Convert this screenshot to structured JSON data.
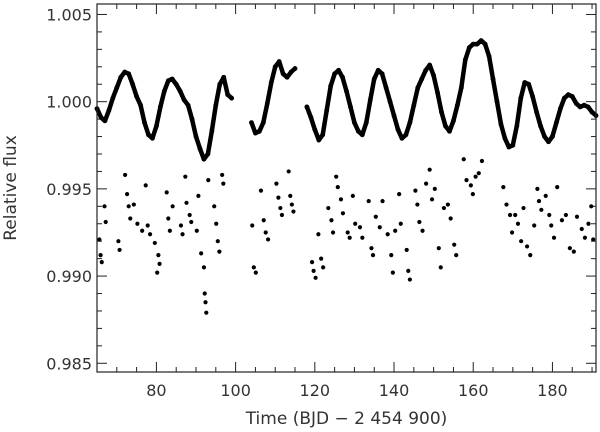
{
  "chart_data": {
    "type": "scatter",
    "title": "",
    "xlabel": "Time (BJD − 2 454 900)",
    "ylabel": "Relative flux",
    "xlim": [
      65,
      191
    ],
    "ylim": [
      0.9845,
      1.0056
    ],
    "grid": false,
    "marker_color": "#000000",
    "x_ticks": [
      {
        "value": 80,
        "label": "80"
      },
      {
        "value": 100,
        "label": "100"
      },
      {
        "value": 120,
        "label": "120"
      },
      {
        "value": 140,
        "label": "140"
      },
      {
        "value": 160,
        "label": "160"
      },
      {
        "value": 180,
        "label": "180"
      }
    ],
    "y_ticks": [
      {
        "value": 0.985,
        "label": "0.985"
      },
      {
        "value": 0.99,
        "label": "0.990"
      },
      {
        "value": 0.995,
        "label": "0.995"
      },
      {
        "value": 1.0,
        "label": "1.000"
      },
      {
        "value": 1.005,
        "label": "1.005"
      }
    ],
    "x_minor_step": 5,
    "y_minor_step": 0.001,
    "series": [
      {
        "role": "light-curve",
        "points": [
          [
            65,
            0.9996
          ],
          [
            66,
            0.9991
          ],
          [
            67,
            0.9989
          ],
          [
            68,
            0.9995
          ],
          [
            69,
            1.0002
          ],
          [
            70,
            1.0008
          ],
          [
            71,
            1.0014
          ],
          [
            72,
            1.0017
          ],
          [
            73,
            1.0016
          ],
          [
            74,
            1.001
          ],
          [
            75,
            1.0003
          ],
          [
            76,
            0.9998
          ],
          [
            77,
            0.9988
          ],
          [
            78,
            0.9981
          ],
          [
            79,
            0.9979
          ],
          [
            80,
            0.9986
          ],
          [
            81,
            0.9997
          ],
          [
            82,
            1.0006
          ],
          [
            83,
            1.0012
          ],
          [
            84,
            1.0013
          ],
          [
            85,
            1.001
          ],
          [
            86,
            1.0006
          ],
          [
            87,
            1.0001
          ],
          [
            88,
            0.9998
          ],
          [
            89,
            0.999
          ],
          [
            90,
            0.998
          ],
          [
            91,
            0.9973
          ],
          [
            92,
            0.9967
          ],
          [
            93,
            0.997
          ],
          [
            94,
            0.9983
          ],
          [
            95,
            0.9998
          ],
          [
            96,
            1.001
          ],
          [
            97,
            1.0014
          ],
          [
            98,
            1.0004
          ],
          [
            99,
            1.0002
          ],
          [
            104,
            0.9988
          ],
          [
            105,
            0.9982
          ],
          [
            106,
            0.9983
          ],
          [
            107,
            0.9988
          ],
          [
            108,
            0.9999
          ],
          [
            109,
            1.0011
          ],
          [
            110,
            1.002
          ],
          [
            111,
            1.0023
          ],
          [
            112,
            1.0016
          ],
          [
            113,
            1.0014
          ],
          [
            114,
            1.0017
          ],
          [
            115,
            1.0019
          ],
          [
            118,
            0.9997
          ],
          [
            119,
            0.9991
          ],
          [
            120,
            0.9984
          ],
          [
            121,
            0.9978
          ],
          [
            122,
            0.9981
          ],
          [
            123,
            0.9995
          ],
          [
            124,
            1.0009
          ],
          [
            125,
            1.0016
          ],
          [
            126,
            1.0018
          ],
          [
            127,
            1.0014
          ],
          [
            128,
            1.0006
          ],
          [
            129,
            0.9997
          ],
          [
            130,
            0.9988
          ],
          [
            131,
            0.9983
          ],
          [
            132,
            0.9981
          ],
          [
            133,
            0.9988
          ],
          [
            134,
            1.0001
          ],
          [
            135,
            1.0013
          ],
          [
            136,
            1.0018
          ],
          [
            137,
            1.0016
          ],
          [
            138,
            1.0008
          ],
          [
            139,
            1.0
          ],
          [
            140,
            0.9992
          ],
          [
            141,
            0.9984
          ],
          [
            142,
            0.9979
          ],
          [
            143,
            0.9981
          ],
          [
            144,
            0.9988
          ],
          [
            145,
            0.9998
          ],
          [
            146,
            1.0008
          ],
          [
            147,
            1.0013
          ],
          [
            148,
            1.0018
          ],
          [
            149,
            1.0021
          ],
          [
            150,
            1.0015
          ],
          [
            151,
            1.0005
          ],
          [
            152,
            0.9994
          ],
          [
            153,
            0.9986
          ],
          [
            154,
            0.9983
          ],
          [
            155,
            0.9989
          ],
          [
            156,
            0.9998
          ],
          [
            157,
            1.0008
          ],
          [
            158,
            1.0024
          ],
          [
            159,
            1.0031
          ],
          [
            160,
            1.0033
          ],
          [
            161,
            1.0033
          ],
          [
            162,
            1.0035
          ],
          [
            163,
            1.0033
          ],
          [
            164,
            1.0026
          ],
          [
            165,
            1.0013
          ],
          [
            166,
            1.0
          ],
          [
            167,
            0.9987
          ],
          [
            168,
            0.9979
          ],
          [
            169,
            0.9974
          ],
          [
            170,
            0.9975
          ],
          [
            171,
            0.9986
          ],
          [
            172,
            1.0002
          ],
          [
            173,
            1.0011
          ],
          [
            174,
            1.001
          ],
          [
            175,
            1.0003
          ],
          [
            176,
            0.9994
          ],
          [
            177,
            0.9986
          ],
          [
            178,
            0.998
          ],
          [
            179,
            0.9977
          ],
          [
            180,
            0.998
          ],
          [
            181,
            0.9988
          ],
          [
            182,
            0.9996
          ],
          [
            183,
            1.0002
          ],
          [
            184,
            1.0004
          ],
          [
            185,
            1.0003
          ],
          [
            186,
            0.9999
          ],
          [
            187,
            0.9997
          ],
          [
            188,
            0.9998
          ],
          [
            189,
            0.9997
          ],
          [
            190,
            0.9994
          ],
          [
            191,
            0.9992
          ]
        ]
      },
      {
        "role": "outliers",
        "points": [
          [
            65.6,
            0.9921
          ],
          [
            65.9,
            0.9912
          ],
          [
            66.2,
            0.9908
          ],
          [
            66.9,
            0.994
          ],
          [
            67.2,
            0.9931
          ],
          [
            70.4,
            0.992
          ],
          [
            70.7,
            0.9915
          ],
          [
            72.1,
            0.9958
          ],
          [
            72.6,
            0.9947
          ],
          [
            73.0,
            0.994
          ],
          [
            73.4,
            0.9933
          ],
          [
            74.3,
            0.9941
          ],
          [
            75.2,
            0.993
          ],
          [
            76.4,
            0.9926
          ],
          [
            77.3,
            0.9952
          ],
          [
            77.8,
            0.9929
          ],
          [
            78.4,
            0.9924
          ],
          [
            79.6,
            0.9919
          ],
          [
            80.2,
            0.9902
          ],
          [
            80.5,
            0.9912
          ],
          [
            80.8,
            0.9907
          ],
          [
            82.6,
            0.9948
          ],
          [
            83.0,
            0.9933
          ],
          [
            83.4,
            0.9926
          ],
          [
            84.1,
            0.994
          ],
          [
            86.2,
            0.9929
          ],
          [
            86.6,
            0.9924
          ],
          [
            87.3,
            0.9957
          ],
          [
            87.6,
            0.9942
          ],
          [
            88.4,
            0.9935
          ],
          [
            88.8,
            0.9931
          ],
          [
            90.2,
            0.9926
          ],
          [
            90.6,
            0.9946
          ],
          [
            91.3,
            0.9913
          ],
          [
            92.0,
            0.9905
          ],
          [
            92.2,
            0.989
          ],
          [
            92.4,
            0.9885
          ],
          [
            92.6,
            0.9879
          ],
          [
            93.1,
            0.9955
          ],
          [
            94.6,
            0.994
          ],
          [
            95.1,
            0.993
          ],
          [
            95.5,
            0.992
          ],
          [
            95.9,
            0.9914
          ],
          [
            96.6,
            0.9958
          ],
          [
            96.9,
            0.9953
          ],
          [
            104.2,
            0.9929
          ],
          [
            104.6,
            0.9905
          ],
          [
            105.1,
            0.9902
          ],
          [
            106.4,
            0.9949
          ],
          [
            107.1,
            0.9932
          ],
          [
            107.6,
            0.9925
          ],
          [
            108.2,
            0.9921
          ],
          [
            110.3,
            0.9953
          ],
          [
            110.8,
            0.9945
          ],
          [
            111.3,
            0.9939
          ],
          [
            111.7,
            0.9935
          ],
          [
            113.4,
            0.996
          ],
          [
            113.8,
            0.9946
          ],
          [
            114.2,
            0.9941
          ],
          [
            114.6,
            0.9937
          ],
          [
            119.3,
            0.9908
          ],
          [
            119.7,
            0.9903
          ],
          [
            120.2,
            0.9899
          ],
          [
            120.9,
            0.9924
          ],
          [
            121.6,
            0.991
          ],
          [
            122.1,
            0.9905
          ],
          [
            123.4,
            0.9939
          ],
          [
            124.2,
            0.9932
          ],
          [
            124.6,
            0.9925
          ],
          [
            125.4,
            0.9957
          ],
          [
            125.8,
            0.9951
          ],
          [
            126.6,
            0.9944
          ],
          [
            127.1,
            0.9936
          ],
          [
            128.3,
            0.9925
          ],
          [
            128.8,
            0.9922
          ],
          [
            129.6,
            0.9946
          ],
          [
            130.2,
            0.993
          ],
          [
            131.4,
            0.9928
          ],
          [
            132.0,
            0.9922
          ],
          [
            133.6,
            0.9943
          ],
          [
            134.3,
            0.9916
          ],
          [
            134.7,
            0.9912
          ],
          [
            135.4,
            0.9934
          ],
          [
            136.4,
            0.9928
          ],
          [
            137.1,
            0.9943
          ],
          [
            138.4,
            0.9924
          ],
          [
            139.3,
            0.9912
          ],
          [
            139.7,
            0.9902
          ],
          [
            140.3,
            0.9926
          ],
          [
            141.3,
            0.9947
          ],
          [
            141.7,
            0.993
          ],
          [
            143.2,
            0.9915
          ],
          [
            143.6,
            0.9903
          ],
          [
            144.0,
            0.9898
          ],
          [
            145.4,
            0.9949
          ],
          [
            145.9,
            0.9941
          ],
          [
            146.4,
            0.9931
          ],
          [
            147.2,
            0.9926
          ],
          [
            148.1,
            0.9953
          ],
          [
            149.0,
            0.9961
          ],
          [
            149.6,
            0.9944
          ],
          [
            150.3,
            0.995
          ],
          [
            151.3,
            0.9916
          ],
          [
            151.8,
            0.9905
          ],
          [
            152.6,
            0.9939
          ],
          [
            153.6,
            0.9941
          ],
          [
            154.3,
            0.9933
          ],
          [
            155.2,
            0.9918
          ],
          [
            155.7,
            0.9912
          ],
          [
            157.6,
            0.9967
          ],
          [
            158.3,
            0.9955
          ],
          [
            159.4,
            0.9952
          ],
          [
            159.9,
            0.9947
          ],
          [
            160.6,
            0.9957
          ],
          [
            161.4,
            0.9959
          ],
          [
            162.2,
            0.9966
          ],
          [
            167.6,
            0.9951
          ],
          [
            168.4,
            0.9941
          ],
          [
            169.3,
            0.9935
          ],
          [
            169.8,
            0.9925
          ],
          [
            170.6,
            0.9935
          ],
          [
            171.3,
            0.993
          ],
          [
            172.1,
            0.992
          ],
          [
            172.7,
            0.9939
          ],
          [
            173.6,
            0.9917
          ],
          [
            174.4,
            0.9912
          ],
          [
            175.4,
            0.9929
          ],
          [
            176.2,
            0.995
          ],
          [
            176.6,
            0.9943
          ],
          [
            177.2,
            0.9938
          ],
          [
            178.3,
            0.9946
          ],
          [
            179.2,
            0.9935
          ],
          [
            179.7,
            0.9929
          ],
          [
            180.4,
            0.9922
          ],
          [
            181.2,
            0.9951
          ],
          [
            182.4,
            0.9932
          ],
          [
            183.4,
            0.9935
          ],
          [
            184.4,
            0.9916
          ],
          [
            185.4,
            0.9914
          ],
          [
            186.2,
            0.9934
          ],
          [
            187.4,
            0.9927
          ],
          [
            188.2,
            0.9922
          ],
          [
            189.1,
            0.993
          ],
          [
            189.8,
            0.994
          ],
          [
            190.3,
            0.9921
          ]
        ]
      }
    ]
  }
}
